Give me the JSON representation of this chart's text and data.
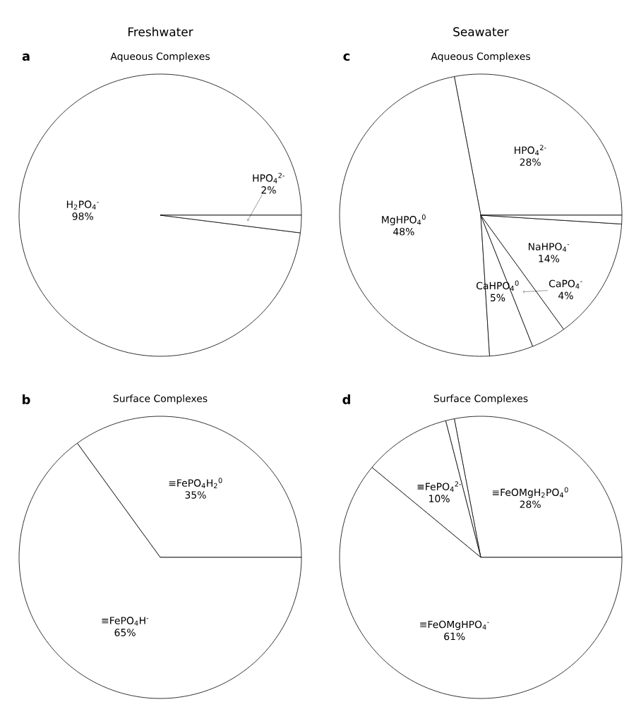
{
  "chart_data": [
    {
      "type": "pie",
      "title": "Freshwater",
      "subtitle": "Aqueous Complexes",
      "annotations": [
        "a"
      ],
      "categories": [
        "H$_{2}$PO$_{4}$$^{-}$",
        "HPO$_{4}$$^{2-}$"
      ],
      "values": [
        98,
        2
      ],
      "value_labels": [
        "98%",
        "2%"
      ],
      "colors": [
        "#ffffff",
        "#ffffff"
      ]
    },
    {
      "type": "pie",
      "title": "Seawater",
      "subtitle": "Aqueous Complexes",
      "annotations": [
        "c"
      ],
      "categories": [
        "HPO$_{4}$$^{2-}$",
        "MgHPO$_{4}$$^{0}$",
        "CaHPO$_{4}$$^{0}$",
        "CaPO$_{4}$$^{-}$",
        "NaHPO$_{4}$$^{-}$",
        null
      ],
      "values": [
        28,
        48,
        5,
        4,
        14,
        1
      ],
      "value_labels": [
        "28%",
        "48%",
        "5%",
        "4%",
        "14%",
        null
      ],
      "colors": [
        "#ffffff",
        "#ffffff",
        "#ffffff",
        "#ffffff",
        "#ffffff",
        "#ffffff"
      ]
    },
    {
      "type": "pie",
      "title": "Surface Complexes",
      "annotations": [
        "b"
      ],
      "categories": [
        "≡FePO$_{4}$H$_{2}$$^{0}$",
        "≡FePO$_{4}$H$^{-}$"
      ],
      "values": [
        35,
        65
      ],
      "value_labels": [
        "35%",
        "65%"
      ],
      "colors": [
        "#ffffff",
        "#ffffff"
      ]
    },
    {
      "type": "pie",
      "title": "Surface Complexes",
      "annotations": [
        "d"
      ],
      "categories": [
        "≡FeOMgH$_{2}$PO$_{4}$$^{0}$",
        null,
        "≡FePO$_{4}$$^{2-}$",
        "≡FeOMgHPO$_{4}$$^{-}$"
      ],
      "values": [
        28,
        1,
        10,
        61
      ],
      "value_labels": [
        "28%",
        null,
        "10%",
        "61%"
      ],
      "colors": [
        "#ffffff",
        "#ffffff",
        "#ffffff",
        "#ffffff"
      ]
    }
  ]
}
